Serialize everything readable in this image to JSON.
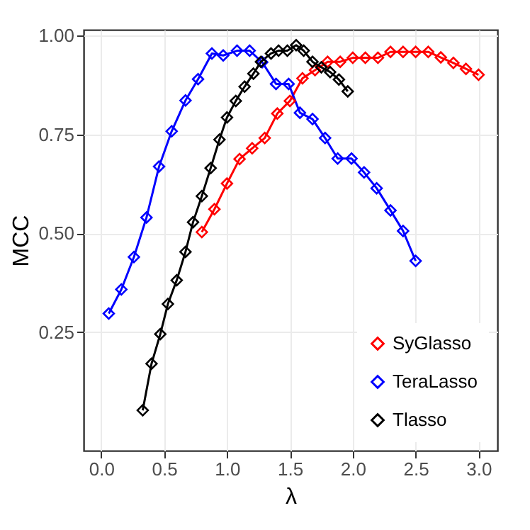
{
  "chart_data": {
    "type": "line",
    "xlabel": "λ",
    "ylabel": "MCC",
    "xlim": [
      -0.14,
      3.15
    ],
    "ylim": [
      -0.05,
      1.015
    ],
    "xticks": [
      {
        "value": 0,
        "label": "0.0"
      },
      {
        "value": 0.5,
        "label": "0.5"
      },
      {
        "value": 1,
        "label": "1.0"
      },
      {
        "value": 1.5,
        "label": "1.5"
      },
      {
        "value": 2,
        "label": "2.0"
      },
      {
        "value": 2.5,
        "label": "2.5"
      },
      {
        "value": 3,
        "label": "3.0"
      }
    ],
    "yticks": [
      {
        "value": 0.25,
        "label": "0.25"
      },
      {
        "value": 0.5,
        "label": "0.50"
      },
      {
        "value": 0.75,
        "label": "0.75"
      },
      {
        "value": 1,
        "label": "1.00"
      }
    ],
    "grid": true,
    "legend": "bottom right",
    "marker": "diamond",
    "line_style": "solid",
    "series": [
      {
        "name": "SyGlasso",
        "color": "#ff0000",
        "x": [
          0.8,
          0.9,
          1.0,
          1.1,
          1.2,
          1.3,
          1.4,
          1.5,
          1.6,
          1.7,
          1.8,
          1.9,
          2.0,
          2.1,
          2.2,
          2.3,
          2.4,
          2.5,
          2.6,
          2.7,
          2.8,
          2.9,
          3.0
        ],
        "values": [
          0.503,
          0.561,
          0.626,
          0.688,
          0.715,
          0.741,
          0.803,
          0.835,
          0.892,
          0.913,
          0.934,
          0.934,
          0.944,
          0.944,
          0.944,
          0.959,
          0.959,
          0.959,
          0.959,
          0.945,
          0.931,
          0.916,
          0.901
        ]
      },
      {
        "name": "TeraLasso",
        "color": "#0000ff",
        "x": [
          0.06,
          0.16,
          0.26,
          0.36,
          0.46,
          0.56,
          0.67,
          0.77,
          0.88,
          0.97,
          1.08,
          1.18,
          1.28,
          1.39,
          1.49,
          1.58,
          1.68,
          1.78,
          1.88,
          1.99,
          2.09,
          2.19,
          2.3,
          2.4,
          2.5
        ],
        "values": [
          0.297,
          0.358,
          0.44,
          0.54,
          0.669,
          0.758,
          0.836,
          0.89,
          0.955,
          0.95,
          0.962,
          0.962,
          0.933,
          0.878,
          0.878,
          0.805,
          0.789,
          0.741,
          0.689,
          0.689,
          0.654,
          0.614,
          0.558,
          0.506,
          0.43
        ]
      },
      {
        "name": "Tlasso",
        "color": "#000000",
        "x": [
          0.33,
          0.4,
          0.47,
          0.53,
          0.6,
          0.67,
          0.73,
          0.8,
          0.87,
          0.94,
          1.0,
          1.07,
          1.14,
          1.21,
          1.27,
          1.35,
          1.41,
          1.48,
          1.55,
          1.61,
          1.68,
          1.75,
          1.82,
          1.89,
          1.96
        ],
        "values": [
          0.052,
          0.17,
          0.245,
          0.321,
          0.381,
          0.453,
          0.528,
          0.594,
          0.665,
          0.737,
          0.793,
          0.835,
          0.871,
          0.904,
          0.934,
          0.955,
          0.962,
          0.962,
          0.976,
          0.962,
          0.934,
          0.92,
          0.908,
          0.889,
          0.859
        ]
      }
    ]
  }
}
